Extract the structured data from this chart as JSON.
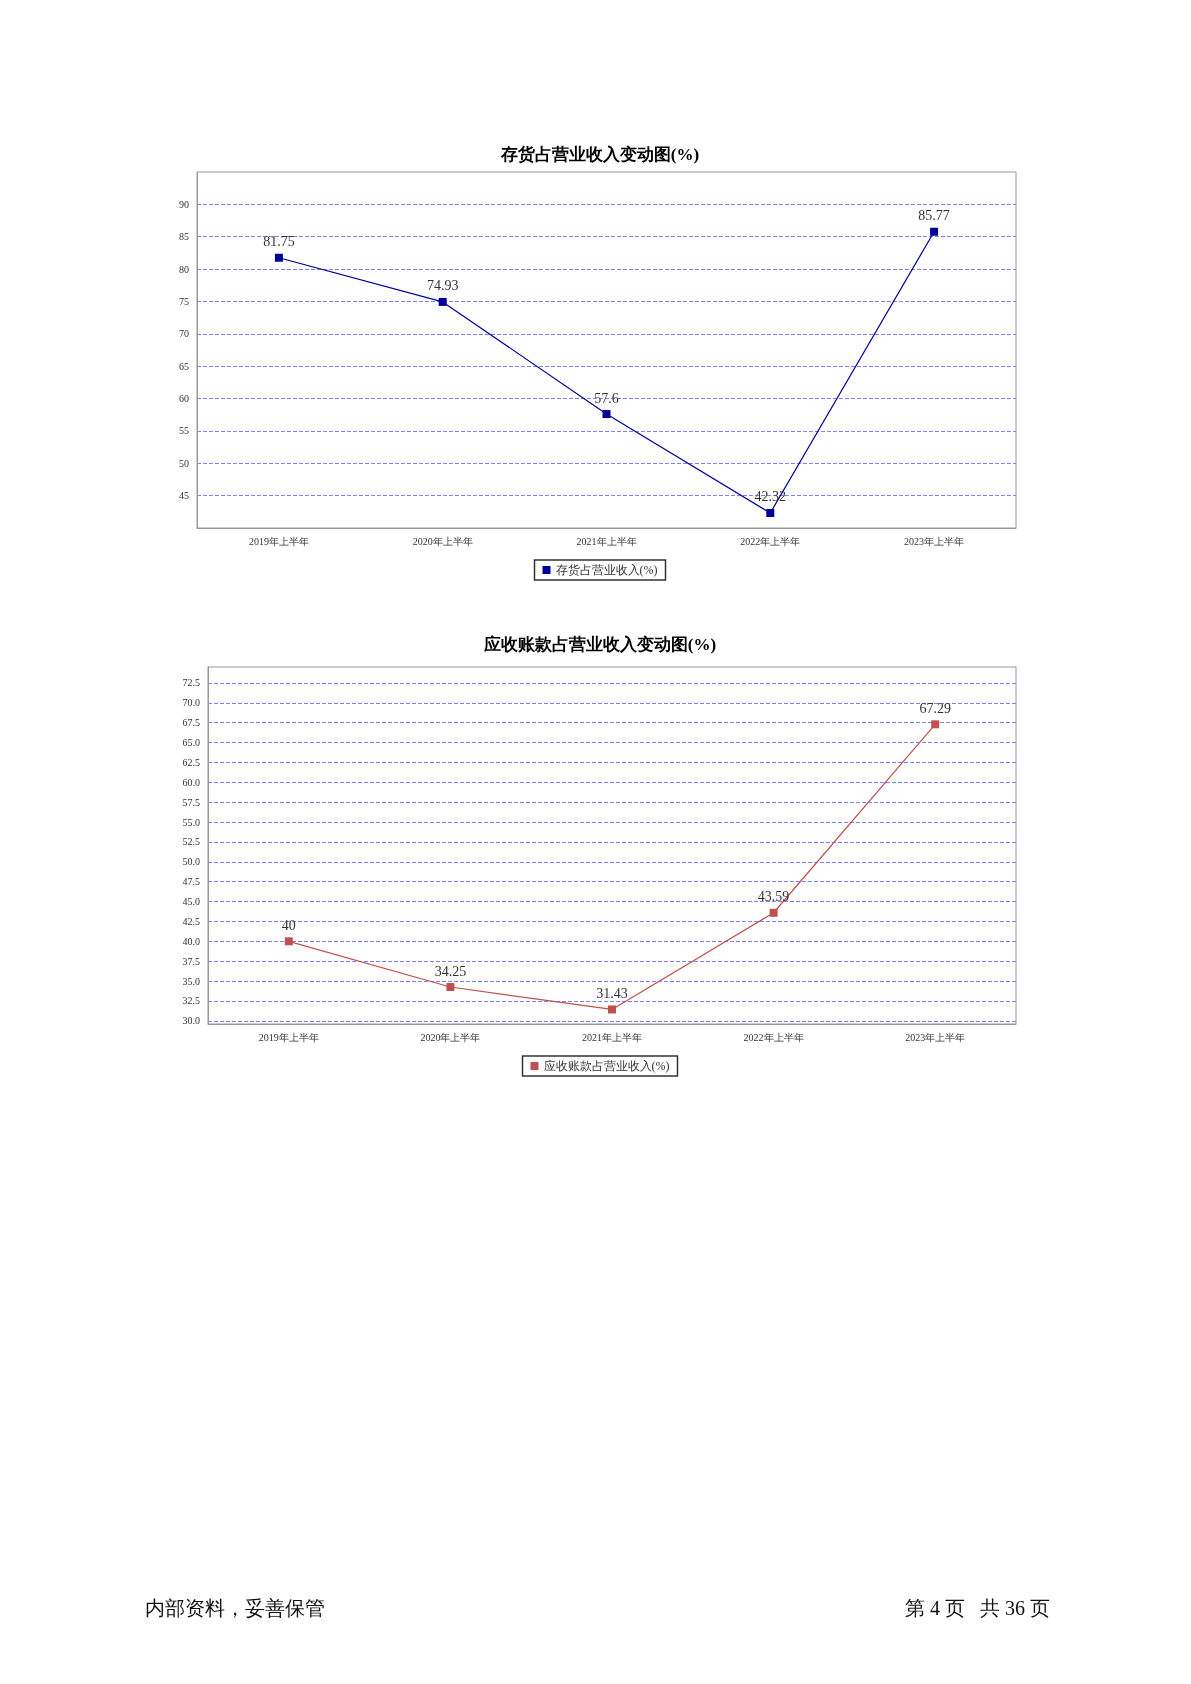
{
  "chart_data": [
    {
      "type": "line",
      "title": "存货占营业收入变动图(%)",
      "categories": [
        "2019年上半年",
        "2020年上半年",
        "2021年上半年",
        "2022年上半年",
        "2023年上半年"
      ],
      "series": [
        {
          "name": "存货占营业收入(%)",
          "color": "#000099",
          "values": [
            81.75,
            74.93,
            57.6,
            42.32,
            85.77
          ]
        }
      ],
      "ylim": [
        40,
        95
      ],
      "yticks": [
        45,
        50,
        55,
        60,
        65,
        70,
        75,
        80,
        85,
        90
      ],
      "grid": "y",
      "legend": "bottom",
      "marker": "square",
      "line_style": "solid",
      "data_labels": true
    },
    {
      "type": "line",
      "title": "应收账款占营业收入变动图(%)",
      "categories": [
        "2019年上半年",
        "2020年上半年",
        "2021年上半年",
        "2022年上半年",
        "2023年上半年"
      ],
      "series": [
        {
          "name": "应收账款占营业收入(%)",
          "color": "#c0504d",
          "values": [
            40,
            34.25,
            31.43,
            43.59,
            67.29
          ]
        }
      ],
      "ylim": [
        29.6,
        74.5
      ],
      "yticks": [
        {
          "value": 30,
          "label": "30.0"
        },
        {
          "value": 32.5,
          "label": "32.5"
        },
        {
          "value": 35,
          "label": "35.0"
        },
        {
          "value": 37.5,
          "label": "37.5"
        },
        {
          "value": 40,
          "label": "40.0"
        },
        {
          "value": 42.5,
          "label": "42.5"
        },
        {
          "value": 45,
          "label": "45.0"
        },
        {
          "value": 47.5,
          "label": "47.5"
        },
        {
          "value": 50,
          "label": "50.0"
        },
        {
          "value": 52.5,
          "label": "52.5"
        },
        {
          "value": 55,
          "label": "55.0"
        },
        {
          "value": 57.5,
          "label": "57.5"
        },
        {
          "value": 60,
          "label": "60.0"
        },
        {
          "value": 62.5,
          "label": "62.5"
        },
        {
          "value": 65,
          "label": "65.0"
        },
        {
          "value": 67.5,
          "label": "67.5"
        },
        {
          "value": 70,
          "label": "70.0"
        },
        {
          "value": 72.5,
          "label": "72.5"
        }
      ],
      "grid": "y",
      "legend": "bottom",
      "marker": "square",
      "line_style": "solid",
      "data_labels": true,
      "annotations": [
        "内部资料，妥善保管",
        "第 4 页   共 36 页"
      ]
    }
  ]
}
